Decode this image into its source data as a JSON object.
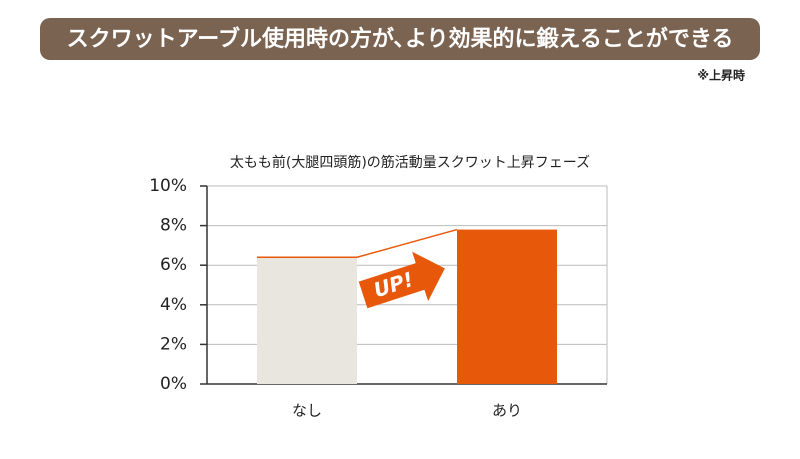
{
  "header": {
    "title": "スクワットアーブル使用時の方が､より効果的に鍛えることができる",
    "note": "※上昇時"
  },
  "chart_data": {
    "type": "bar",
    "title": "太もも前(大腿四頭筋)の筋活動量スクワット上昇フェーズ",
    "categories": [
      "なし",
      "あり"
    ],
    "values": [
      6.4,
      7.8
    ],
    "colors": [
      "#e8e6df",
      "#e8580a"
    ],
    "ylim": [
      0,
      10
    ],
    "yticks": [
      {
        "value": 0,
        "label": "0%"
      },
      {
        "value": 2,
        "label": "2%"
      },
      {
        "value": 4,
        "label": "4%"
      },
      {
        "value": 6,
        "label": "6%"
      },
      {
        "value": 8,
        "label": "8%"
      },
      {
        "value": 10,
        "label": "10%"
      }
    ],
    "grid": true,
    "annotation": "UP!"
  }
}
